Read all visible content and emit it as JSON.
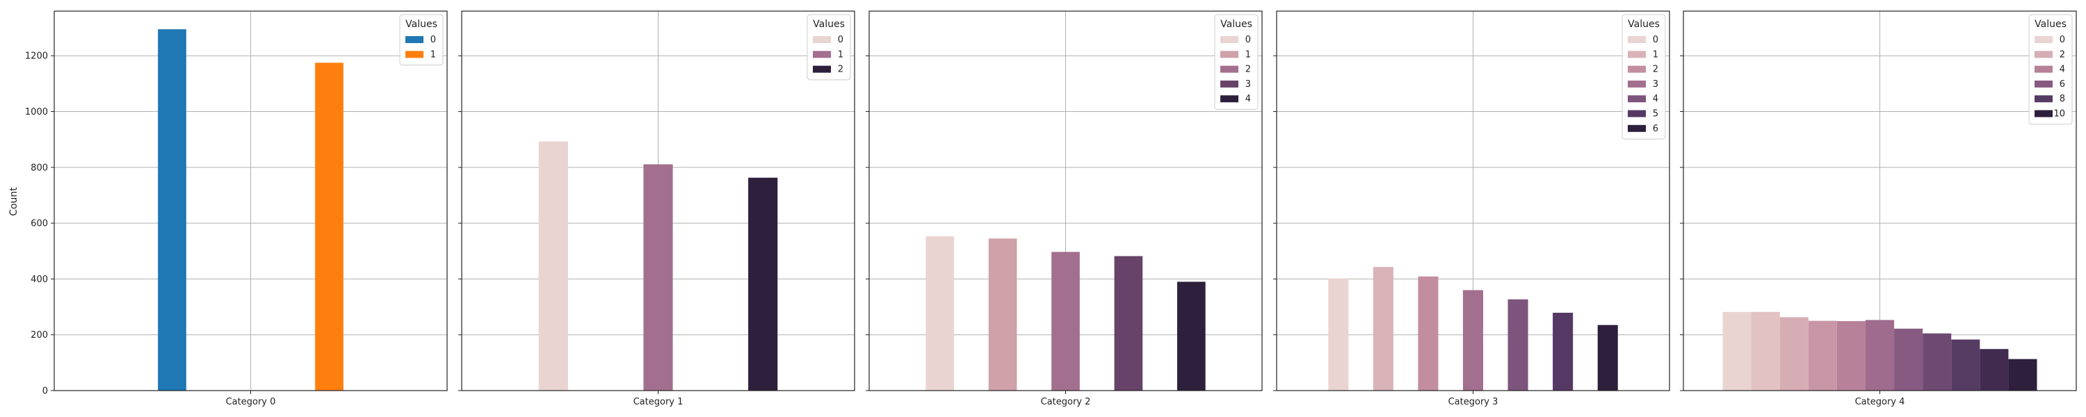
{
  "ylabel": "Count",
  "yticks": [
    0,
    200,
    400,
    600,
    800,
    1000,
    1200
  ],
  "ylim": [
    0,
    1360
  ],
  "grid": true,
  "legend_placement": "top-right",
  "chart_data": [
    {
      "type": "bar",
      "category": "Category 0",
      "legend_title": "Values",
      "series": [
        {
          "name": "0",
          "value": 1295,
          "color": "#1f77b4"
        },
        {
          "name": "1",
          "value": 1175,
          "color": "#ff7f0e"
        }
      ],
      "legend": [
        {
          "label": "0",
          "color": "#1f77b4"
        },
        {
          "label": "1",
          "color": "#ff7f0e"
        }
      ]
    },
    {
      "type": "bar",
      "category": "Category 1",
      "legend_title": "Values",
      "series": [
        {
          "name": "0",
          "value": 893,
          "color": "#ead4d2"
        },
        {
          "name": "1",
          "value": 811,
          "color": "#a36f8f"
        },
        {
          "name": "2",
          "value": 763,
          "color": "#2e1f3c"
        }
      ],
      "legend": [
        {
          "label": "0",
          "color": "#ead4d2"
        },
        {
          "label": "1",
          "color": "#a36f8f"
        },
        {
          "label": "2",
          "color": "#2e1f3c"
        }
      ]
    },
    {
      "type": "bar",
      "category": "Category 2",
      "legend_title": "Values",
      "series": [
        {
          "name": "0",
          "value": 553,
          "color": "#ead4d2"
        },
        {
          "name": "1",
          "value": 545,
          "color": "#cfa1a8"
        },
        {
          "name": "2",
          "value": 497,
          "color": "#a36f8f"
        },
        {
          "name": "3",
          "value": 482,
          "color": "#674369"
        },
        {
          "name": "4",
          "value": 390,
          "color": "#2e1f3c"
        }
      ],
      "legend": [
        {
          "label": "0",
          "color": "#ead4d2"
        },
        {
          "label": "1",
          "color": "#cfa1a8"
        },
        {
          "label": "2",
          "color": "#a36f8f"
        },
        {
          "label": "3",
          "color": "#674369"
        },
        {
          "label": "4",
          "color": "#2e1f3c"
        }
      ]
    },
    {
      "type": "bar",
      "category": "Category 3",
      "legend_title": "Values",
      "series": [
        {
          "name": "0",
          "value": 402,
          "color": "#ead4d2"
        },
        {
          "name": "1",
          "value": 443,
          "color": "#d9b3b8"
        },
        {
          "name": "2",
          "value": 409,
          "color": "#c28e9f"
        },
        {
          "name": "3",
          "value": 360,
          "color": "#a36f8f"
        },
        {
          "name": "4",
          "value": 327,
          "color": "#7d547c"
        },
        {
          "name": "5",
          "value": 279,
          "color": "#553964"
        },
        {
          "name": "6",
          "value": 235,
          "color": "#2e1f3c"
        }
      ],
      "legend": [
        {
          "label": "0",
          "color": "#ead4d2"
        },
        {
          "label": "1",
          "color": "#d9b3b8"
        },
        {
          "label": "2",
          "color": "#c28e9f"
        },
        {
          "label": "3",
          "color": "#a36f8f"
        },
        {
          "label": "4",
          "color": "#7d547c"
        },
        {
          "label": "5",
          "color": "#553964"
        },
        {
          "label": "6",
          "color": "#2e1f3c"
        }
      ]
    },
    {
      "type": "bar",
      "category": "Category 4",
      "legend_title": "Values",
      "series": [
        {
          "name": "0",
          "value": 282,
          "color": "#ead4d2"
        },
        {
          "name": "1",
          "value": 282,
          "color": "#e2c2c2"
        },
        {
          "name": "2",
          "value": 263,
          "color": "#d6adb4"
        },
        {
          "name": "3",
          "value": 250,
          "color": "#c896a6"
        },
        {
          "name": "4",
          "value": 249,
          "color": "#b68199"
        },
        {
          "name": "5",
          "value": 253,
          "color": "#a06c8e"
        },
        {
          "name": "6",
          "value": 222,
          "color": "#875a82"
        },
        {
          "name": "7",
          "value": 205,
          "color": "#6e4a73"
        },
        {
          "name": "8",
          "value": 183,
          "color": "#563b63"
        },
        {
          "name": "9",
          "value": 149,
          "color": "#412c50"
        },
        {
          "name": "10",
          "value": 113,
          "color": "#2e1f3c"
        }
      ],
      "legend": [
        {
          "label": "0",
          "color": "#ead4d2"
        },
        {
          "label": "2",
          "color": "#d6adb4"
        },
        {
          "label": "4",
          "color": "#b68199"
        },
        {
          "label": "6",
          "color": "#875a82"
        },
        {
          "label": "8",
          "color": "#563b63"
        },
        {
          "label": "10",
          "color": "#2e1f3c"
        }
      ]
    }
  ]
}
